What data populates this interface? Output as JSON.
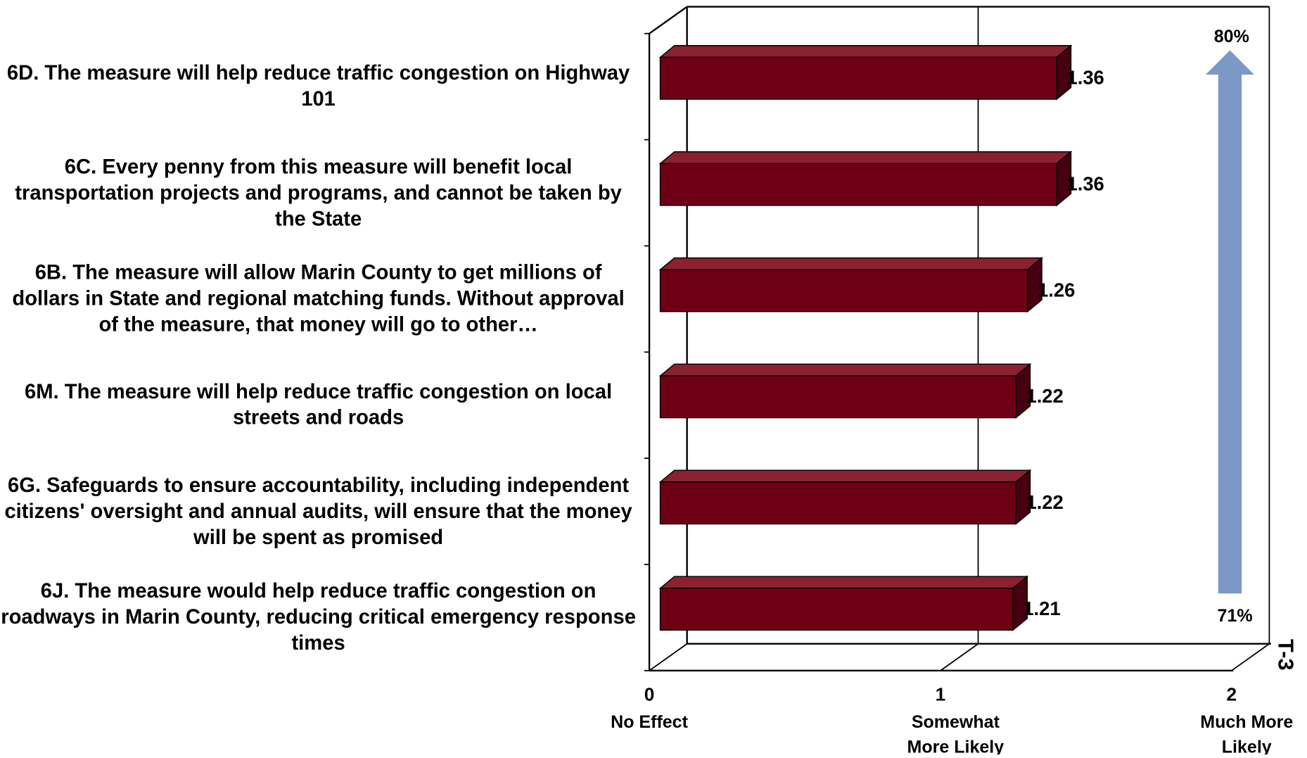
{
  "chart_data": {
    "type": "bar",
    "orientation": "horizontal",
    "categories": [
      "6D. The measure will help reduce traffic congestion on Highway 101",
      "6C. Every penny from this measure will benefit local transportation projects and programs, and cannot be taken by the State",
      "6B. The measure will allow Marin County to get millions of dollars in State and regional matching funds.  Without approval of the measure, that money will go to other…",
      "6M. The measure will help reduce traffic congestion on local streets and roads",
      "6G. Safeguards to ensure accountability, including independent citizens' oversight and annual audits, will ensure that the money will be spent as promised",
      "6J. The measure would help reduce traffic congestion on roadways in Marin County, reducing critical emergency response times"
    ],
    "values": [
      1.36,
      1.36,
      1.26,
      1.22,
      1.22,
      1.21
    ],
    "color": "#6e0016",
    "xlim": [
      0,
      2
    ],
    "xticks": [
      0,
      1,
      2
    ],
    "xtick_captions": [
      "No Effect",
      "Somewhat More  Likely",
      "Much More Likely"
    ],
    "grid": true,
    "annotations": {
      "top": "80%",
      "bottom": "71%",
      "arrow_color": "#7b98c6",
      "page_id": "T-3"
    }
  }
}
